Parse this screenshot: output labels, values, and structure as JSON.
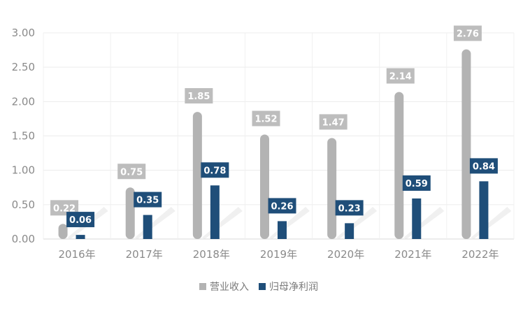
{
  "chart_data": {
    "type": "bar",
    "categories": [
      "2016年",
      "2017年",
      "2018年",
      "2019年",
      "2020年",
      "2021年",
      "2022年"
    ],
    "series": [
      {
        "name": "营业收入",
        "values": [
          0.22,
          0.75,
          1.85,
          1.52,
          1.47,
          2.14,
          2.76
        ],
        "color": "#b3b3b3"
      },
      {
        "name": "归母净利润",
        "values": [
          0.06,
          0.35,
          0.78,
          0.26,
          0.23,
          0.59,
          0.84
        ],
        "color": "#1f4e79"
      }
    ],
    "yticks": [
      "0.00",
      "0.50",
      "1.00",
      "1.50",
      "2.00",
      "2.50",
      "3.00"
    ],
    "ylim": [
      0,
      3
    ],
    "grid": true,
    "legend": "bottom-center",
    "data_labels": true
  }
}
